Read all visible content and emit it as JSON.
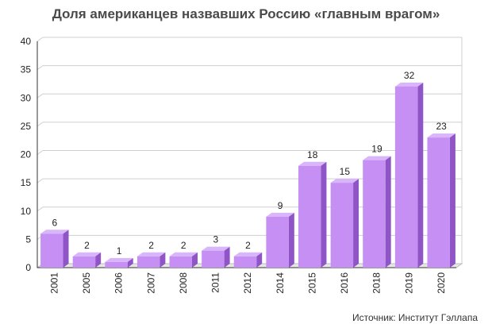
{
  "title": "Доля американцев назвавших Россию «главным врагом»",
  "source": "Источник: Институт Гэллапа",
  "colors": {
    "bar_front": "#c58ff4",
    "bar_top": "#d9b5fa",
    "bar_side": "#8f55c6",
    "grid": "#cfcfcf",
    "axis": "#333333",
    "floor": "#bdbdbd"
  },
  "chart_data": {
    "type": "bar",
    "title": "Доля американцев назвавших Россию «главным врагом»",
    "categories": [
      "2001",
      "2005",
      "2006",
      "2007",
      "2008",
      "2011",
      "2012",
      "2014",
      "2015",
      "2016",
      "2018",
      "2019",
      "2020"
    ],
    "values": [
      6,
      2,
      1,
      2,
      2,
      3,
      2,
      9,
      18,
      15,
      19,
      32,
      23
    ],
    "ylim": [
      0,
      40
    ],
    "yticks": [
      0,
      5,
      10,
      15,
      20,
      25,
      30,
      35,
      40
    ],
    "xlabel": "",
    "ylabel": "",
    "grid": true,
    "data_labels": true,
    "style": "3d-bar"
  }
}
